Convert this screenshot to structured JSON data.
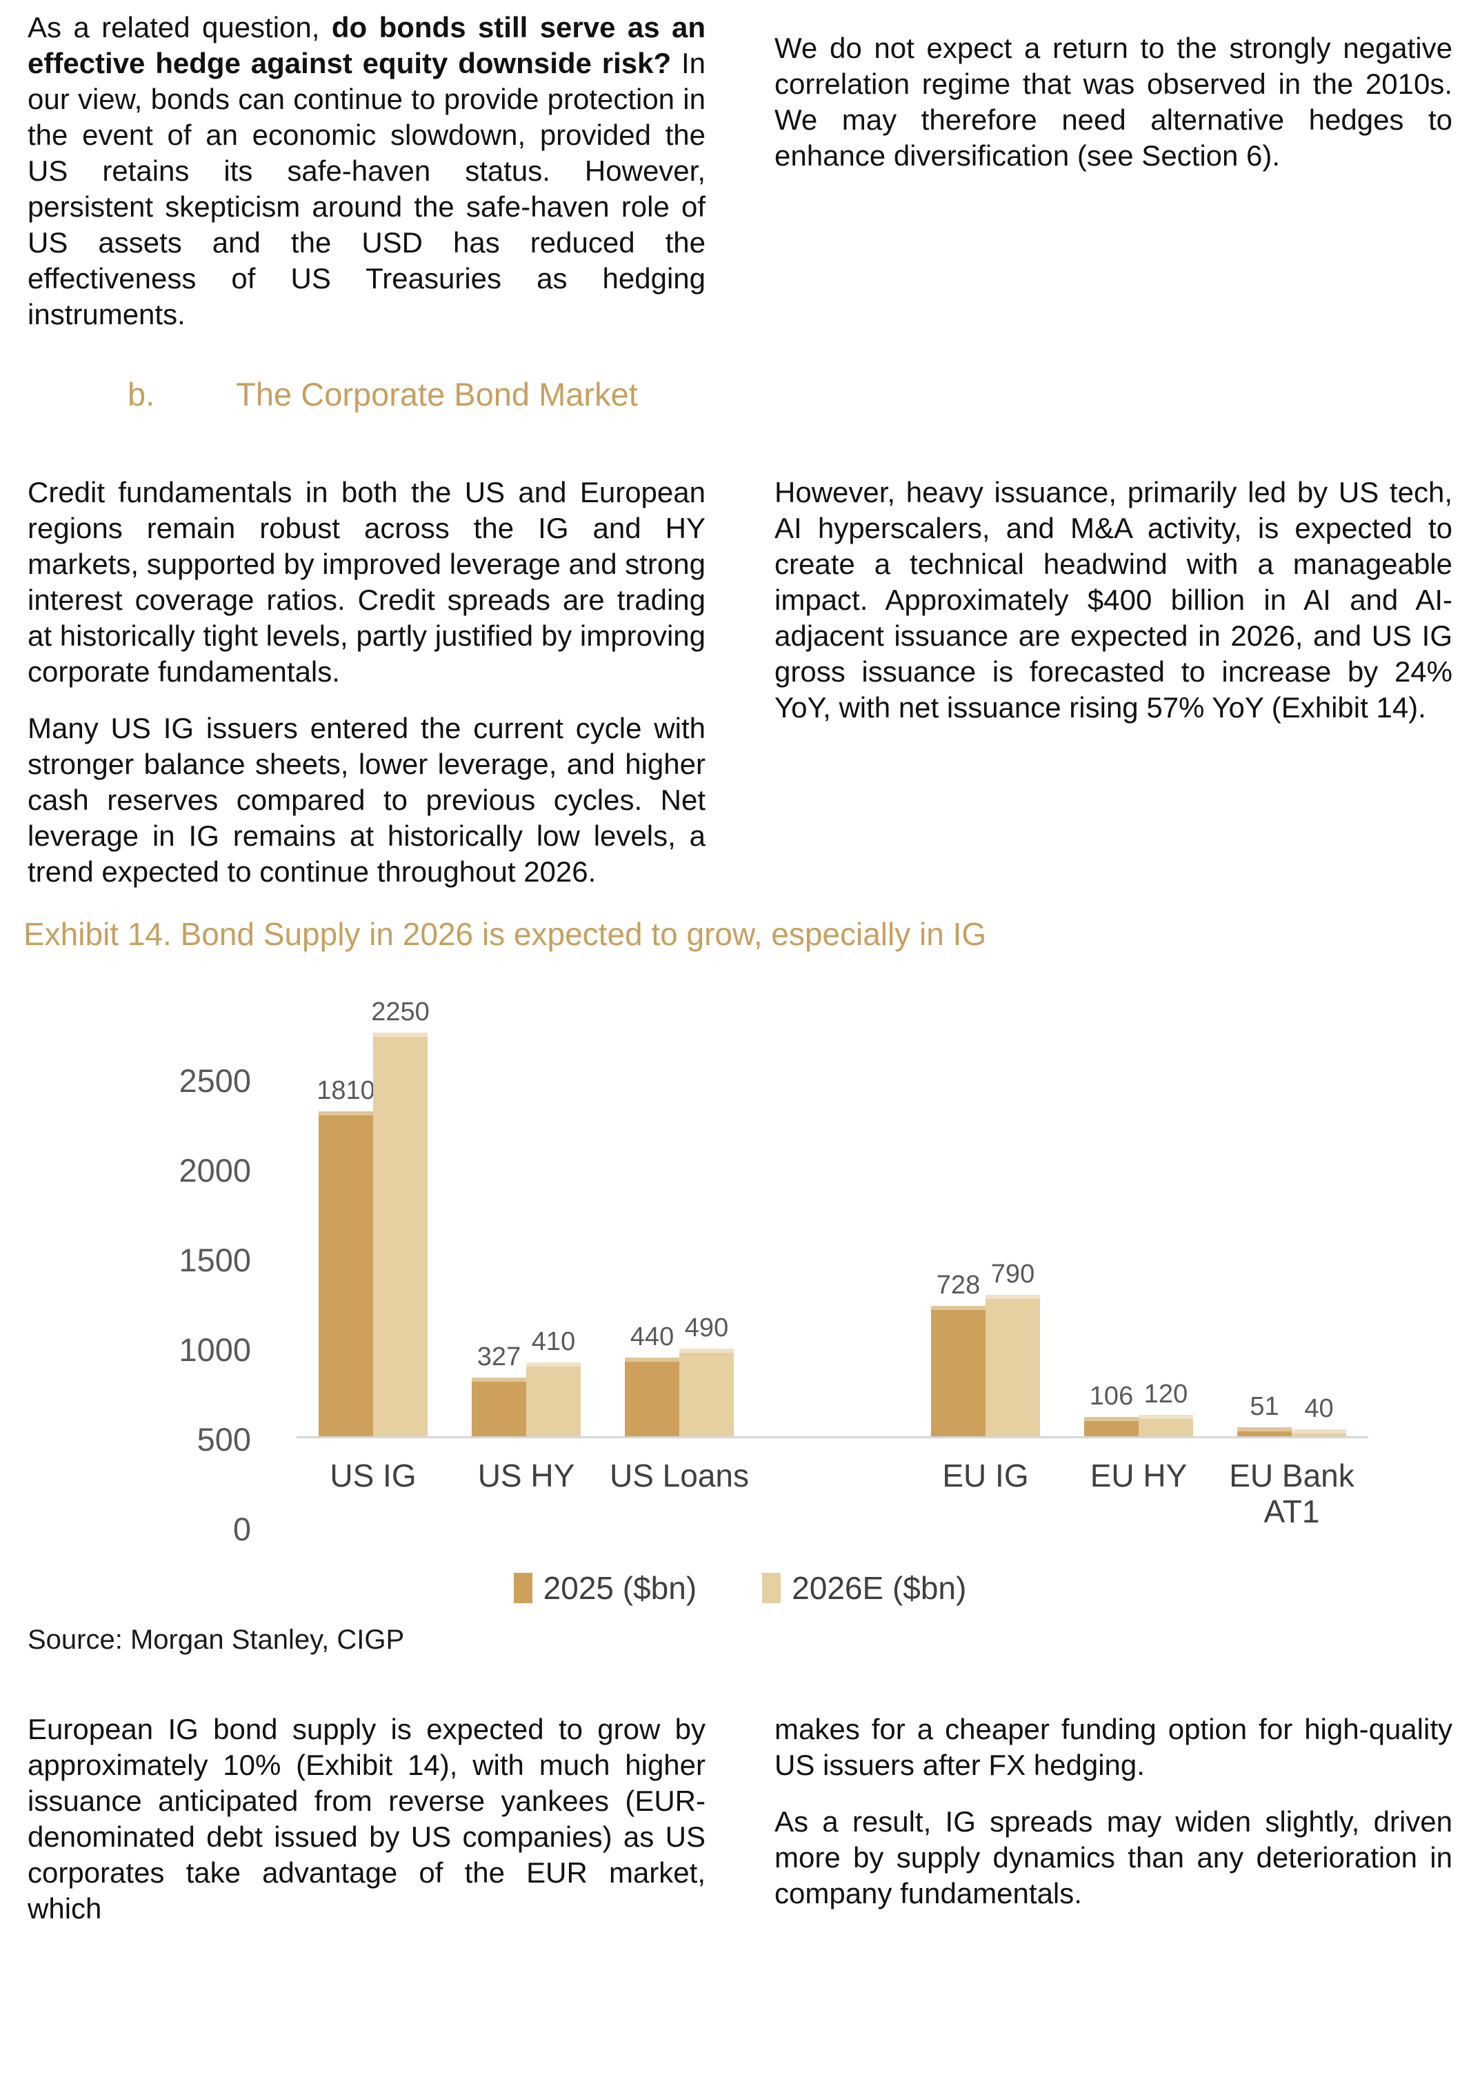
{
  "colors": {
    "accent_gold": "#C6A05F",
    "bar_2025": "#CDA15C",
    "bar_2026": "#E6CFA0",
    "axis_line": "#D6D6D6",
    "chart_text": "#595959",
    "body_text": "#111111"
  },
  "top": {
    "left_para": {
      "pre": "As a related question, ",
      "bold": "do bonds still serve as an effective hedge against equity downside risk?",
      "rest": " In our view, bonds can continue to provide protection in the event of an economic slowdown, provided the US retains its safe-haven status. However, persistent skepticism around the safe-haven role of US assets and the USD has reduced the effectiveness of US Treasuries as hedging instruments."
    },
    "right_para": "We do not expect a return to the strongly negative correlation regime that was observed in the 2010s. We may therefore need alternative hedges to enhance diversification (see Section 6)."
  },
  "section_heading": {
    "index": "b.",
    "title": "The Corporate Bond Market"
  },
  "mid": {
    "left_para1": "Credit fundamentals in both the US and European regions remain robust across the IG and HY markets, supported by improved leverage and strong interest coverage ratios. Credit spreads are trading at historically tight levels, partly justified by improving corporate fundamentals.",
    "left_para2": "Many US IG issuers entered the current cycle with stronger balance sheets, lower leverage, and higher cash reserves compared to previous cycles. Net leverage in IG remains at historically low levels, a trend expected to continue throughout 2026.",
    "right_para": "However, heavy issuance, primarily led by US tech, AI hyperscalers, and M&A activity, is expected to create a technical headwind with a manageable impact. Approximately $400 billion in AI and AI-adjacent issuance are expected in 2026, and US IG gross issuance is forecasted to increase by 24% YoY, with net issuance rising 57% YoY (Exhibit 14)."
  },
  "exhibit": {
    "title": "Exhibit 14. Bond Supply in 2026 is expected to grow, especially in IG",
    "source": "Source: Morgan Stanley, CIGP"
  },
  "chart_data": {
    "type": "bar",
    "categories": [
      "US IG",
      "US HY",
      "US Loans",
      "EU IG",
      "EU HY",
      "EU Bank AT1"
    ],
    "series": [
      {
        "name": "2025 ($bn)",
        "values": [
          1810,
          327,
          440,
          728,
          106,
          51
        ],
        "color": "#CDA15C"
      },
      {
        "name": "2026E ($bn)",
        "values": [
          2250,
          410,
          490,
          790,
          120,
          40
        ],
        "color": "#E6CFA0"
      }
    ],
    "title": "Exhibit 14. Bond Supply in 2026 is expected to grow, especially in IG",
    "xlabel": "",
    "ylabel": "",
    "ylim": [
      0,
      2500
    ],
    "yticks": [
      0,
      500,
      1000,
      1500,
      2000,
      2500
    ],
    "grid": false,
    "legend_position": "bottom",
    "gap_after_index": 2
  },
  "bottom": {
    "left_para": "European IG bond supply is expected to grow by approximately 10% (Exhibit 14), with much higher issuance anticipated from reverse yankees (EUR-denominated debt issued by US companies) as US corporates take advantage of the EUR market, which",
    "right_para1": "makes for a cheaper funding option for high-quality US issuers after FX hedging.",
    "right_para2": "As a result, IG spreads may widen slightly, driven more by supply dynamics than any deterioration in company fundamentals."
  }
}
